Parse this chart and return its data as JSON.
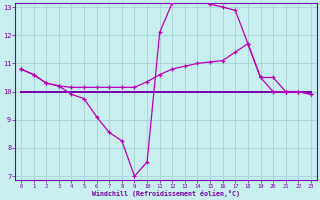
{
  "xlabel": "Windchill (Refroidissement éolien,°C)",
  "bg_color": "#c8eef0",
  "grid_color": "#aad8da",
  "line_color": "#bb00bb",
  "line_color2": "#7700aa",
  "xmin": 0,
  "xmax": 23,
  "ymin": 7,
  "ymax": 13,
  "xticks": [
    0,
    1,
    2,
    3,
    4,
    5,
    6,
    7,
    8,
    9,
    10,
    11,
    12,
    13,
    14,
    15,
    16,
    17,
    18,
    19,
    20,
    21,
    22,
    23
  ],
  "yticks": [
    7,
    8,
    9,
    10,
    11,
    12,
    13
  ],
  "s1_x": [
    0,
    1,
    2,
    3,
    4,
    5,
    6,
    7,
    8,
    9,
    10,
    11,
    12,
    13,
    14,
    15,
    16,
    17,
    18,
    19,
    20,
    21,
    22,
    23
  ],
  "s1_y": [
    10.8,
    10.6,
    10.3,
    10.2,
    9.9,
    9.75,
    9.1,
    8.55,
    8.25,
    7.0,
    7.5,
    12.1,
    13.15,
    13.3,
    13.3,
    13.1,
    13.0,
    12.88,
    11.7,
    10.5,
    10.0,
    10.0,
    10.0,
    9.9
  ],
  "s2_x": [
    0,
    1,
    2,
    3,
    4,
    5,
    6,
    7,
    8,
    9,
    10,
    11,
    12,
    13,
    14,
    15,
    16,
    17,
    18,
    19,
    20,
    21,
    22,
    23
  ],
  "s2_y": [
    10.8,
    10.6,
    10.3,
    10.2,
    10.15,
    10.15,
    10.15,
    10.15,
    10.15,
    10.15,
    10.35,
    10.6,
    10.8,
    10.9,
    11.0,
    11.05,
    11.1,
    11.4,
    11.7,
    10.5,
    10.5,
    10.0,
    10.0,
    9.9
  ],
  "s3_x": [
    0,
    1,
    2,
    3,
    4,
    5,
    6,
    7,
    8,
    9,
    10,
    11,
    12,
    13,
    14,
    15,
    16,
    17,
    18,
    19,
    20,
    21,
    22,
    23
  ],
  "s3_y": [
    10.0,
    10.0,
    10.0,
    10.0,
    10.0,
    10.0,
    10.0,
    10.0,
    10.0,
    10.0,
    10.0,
    10.0,
    10.0,
    10.0,
    10.0,
    10.0,
    10.0,
    10.0,
    10.0,
    10.0,
    10.0,
    10.0,
    10.0,
    10.0
  ]
}
